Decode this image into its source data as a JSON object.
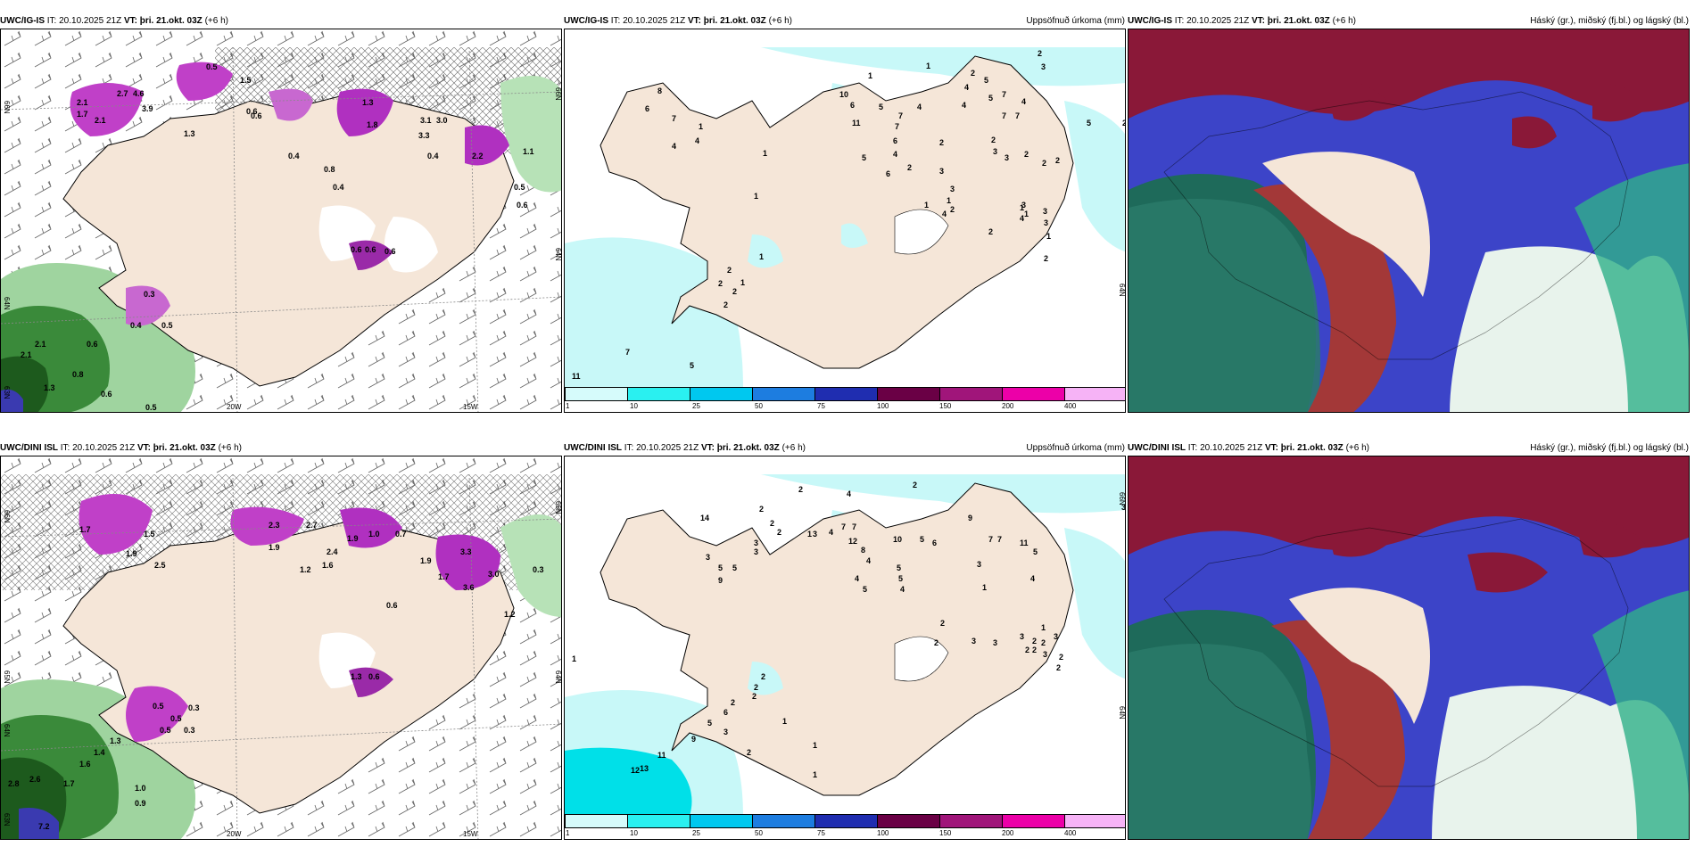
{
  "panels": [
    {
      "model": "UWC/IG-IS",
      "it_label": "IT:",
      "it": "20.10.2025 21Z",
      "vt_label": "VT:",
      "vt": "þri. 21.okt. 03Z",
      "lead": "(+6 h)",
      "right_title": "",
      "lon_labels": [
        "20W",
        "15W"
      ],
      "lat_labels": [
        "66N",
        "64N",
        "63N",
        "66N",
        "64N"
      ],
      "values": [
        "0.5",
        "1.5",
        "2.1",
        "2.7",
        "4.6",
        "3.9",
        "1.7",
        "2.1",
        "1.3",
        "0.6",
        "0.4",
        "0.8",
        "0.4",
        "1.3",
        "1.8",
        "3.1",
        "3.0",
        "3.3",
        "0.4",
        "2.2",
        "1.1",
        "0.5",
        "0.6",
        "0.6",
        "0.6",
        "0.6",
        "0.6",
        "0.3",
        "0.4",
        "0.5",
        "2.1",
        "2.1",
        "0.6",
        "0.8",
        "1.3",
        "0.6",
        "0.5"
      ]
    },
    {
      "model": "UWC/IG-IS",
      "it_label": "IT:",
      "it": "20.10.2025 21Z",
      "vt_label": "VT:",
      "vt": "þri. 21.okt. 03Z",
      "lead": "(+6 h)",
      "right_title": "Uppsöfnuð úrkoma (mm)",
      "lat_labels": [
        "64N"
      ],
      "values": [
        "2",
        "3",
        "1",
        "1",
        "4",
        "2",
        "6",
        "8",
        "7",
        "1",
        "4",
        "10",
        "6",
        "5",
        "4",
        "4",
        "7",
        "5",
        "7",
        "11",
        "6",
        "4",
        "2",
        "6",
        "2",
        "7",
        "5",
        "4",
        "7",
        "3",
        "1",
        "3",
        "4",
        "2",
        "2",
        "3",
        "2",
        "2",
        "2",
        "3",
        "1",
        "2",
        "1",
        "2",
        "4",
        "3",
        "3",
        "1",
        "2",
        "2",
        "2",
        "1",
        "2",
        "5",
        "4",
        "7",
        "5",
        "3",
        "1",
        "11",
        "7",
        "5",
        "1",
        "1",
        "1",
        "2"
      ],
      "colorbar": {
        "colors": [
          "#d6fbfb",
          "#2af0f0",
          "#00c8ef",
          "#1d7de0",
          "#1f2db0",
          "#6a0045",
          "#a0157a",
          "#ec00a8",
          "#f6b3f6"
        ],
        "ticks": [
          "1",
          "10",
          "25",
          "50",
          "75",
          "100",
          "150",
          "200",
          "400"
        ]
      }
    },
    {
      "model": "UWC/IG-IS",
      "it_label": "IT:",
      "it": "20.10.2025 21Z",
      "vt_label": "VT:",
      "vt": "þri. 21.okt. 03Z",
      "lead": "(+6 h)",
      "right_title": "Háský (gr.), miðský (fj.bl.) og lágský (bl.)"
    },
    {
      "model": "UWC/DINI ISL",
      "it_label": "IT:",
      "it": "20.10.2025 21Z",
      "vt_label": "VT:",
      "vt": "þri. 21.okt. 03Z",
      "lead": "(+6 h)",
      "right_title": "",
      "lon_labels": [
        "20W",
        "15W"
      ],
      "lat_labels": [
        "66N",
        "64N",
        "65N",
        "64N",
        "65N",
        "63N"
      ],
      "values": [
        "1.7",
        "1.5",
        "1.9",
        "2.5",
        "2.3",
        "2.7",
        "1.9",
        "1.0",
        "0.7",
        "1.9",
        "1.9",
        "1.7",
        "3.3",
        "3.6",
        "3.0",
        "0.3",
        "1.2",
        "2.4",
        "1.2",
        "1.6",
        "0.6",
        "1.3",
        "0.6",
        "0.5",
        "0.5",
        "0.5",
        "0.3",
        "0.3",
        "1.3",
        "1.4",
        "1.6",
        "2.8",
        "2.6",
        "1.7",
        "1.0",
        "0.9",
        "7.2"
      ]
    },
    {
      "model": "UWC/DINI ISL",
      "it_label": "IT:",
      "it": "20.10.2025 21Z",
      "vt_label": "VT:",
      "vt": "þri. 21.okt. 03Z",
      "lead": "(+6 h)",
      "right_title": "Uppsöfnuð úrkoma (mm)",
      "lat_labels": [
        "66N",
        "64N"
      ],
      "values": [
        "2",
        "4",
        "2",
        "3",
        "2",
        "14",
        "2",
        "2",
        "3",
        "1",
        "4",
        "7",
        "7",
        "12",
        "10",
        "5",
        "9",
        "7",
        "7",
        "3",
        "3",
        "5",
        "9",
        "5",
        "3",
        "8",
        "4",
        "5",
        "5",
        "4",
        "4",
        "5",
        "6",
        "11",
        "3",
        "1",
        "4",
        "5",
        "2",
        "2",
        "3",
        "1",
        "3",
        "3",
        "2",
        "2",
        "3",
        "2",
        "2",
        "2",
        "2",
        "3",
        "2",
        "2",
        "2",
        "2",
        "6",
        "5",
        "3",
        "9",
        "1",
        "1",
        "12",
        "13",
        "11",
        "1",
        "2",
        "1"
      ],
      "colorbar": {
        "colors": [
          "#d6fbfb",
          "#2af0f0",
          "#00c8ef",
          "#1d7de0",
          "#1f2db0",
          "#6a0045",
          "#a0157a",
          "#ec00a8",
          "#f6b3f6"
        ],
        "ticks": [
          "1",
          "10",
          "25",
          "50",
          "75",
          "100",
          "150",
          "200",
          "400"
        ]
      }
    },
    {
      "model": "UWC/DINI ISL",
      "it_label": "IT:",
      "it": "20.10.2025 21Z",
      "vt_label": "VT:",
      "vt": "þri. 21.okt. 03Z",
      "lead": "(+6 h)",
      "right_title": "Háský (gr.), miðský (fj.bl.) og lágský (bl.)"
    }
  ],
  "colors": {
    "land": "#f5e6d8",
    "precip_light": "#c8f8f8",
    "wind_green": "#3a9a3a",
    "magenta": "#b030c0",
    "cloud_high": "#1e8a6a",
    "cloud_mid": "#3c44c8",
    "cloud_low": "#8a1838"
  }
}
